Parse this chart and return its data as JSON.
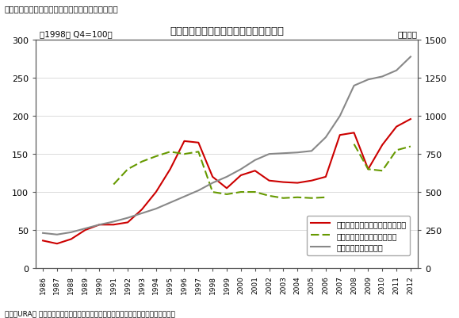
{
  "title": "民間住宅価格指数と外国人居住者の推移",
  "fig_label": "図表１　民間住宅価格指数と外国人居住者数の推移",
  "left_label": "（1998年 Q4=100）",
  "right_label": "（千人）",
  "source": "出所）URA， シンガポール統計局のデータをもとに三井住友トラスト基礎研究所作成",
  "years": [
    1986,
    1987,
    1988,
    1989,
    1990,
    1991,
    1992,
    1993,
    1994,
    1995,
    1996,
    1997,
    1998,
    1999,
    2000,
    2001,
    2002,
    2003,
    2004,
    2005,
    2006,
    2007,
    2008,
    2009,
    2010,
    2011,
    2012
  ],
  "mansion_index": [
    36,
    32,
    38,
    50,
    57,
    57,
    60,
    77,
    100,
    130,
    167,
    165,
    120,
    105,
    122,
    128,
    115,
    113,
    112,
    115,
    120,
    175,
    178,
    130,
    162,
    186,
    196
  ],
  "rental_index": [
    null,
    null,
    null,
    null,
    null,
    110,
    130,
    140,
    147,
    153,
    150,
    153,
    100,
    97,
    100,
    100,
    95,
    92,
    93,
    92,
    93,
    null,
    163,
    130,
    128,
    155,
    160
  ],
  "foreign_residents": [
    230,
    220,
    235,
    260,
    285,
    305,
    330,
    360,
    390,
    430,
    470,
    510,
    560,
    600,
    650,
    710,
    750,
    755,
    760,
    770,
    860,
    1000,
    1200,
    1240,
    1260,
    1300,
    1390
  ],
  "mansion_color": "#cc0000",
  "rental_color": "#669900",
  "foreign_color": "#888888",
  "left_ylim": [
    0,
    300
  ],
  "left_yticks": [
    0,
    50,
    100,
    150,
    200,
    250,
    300
  ],
  "right_ylim": [
    0,
    1500
  ],
  "right_yticks": [
    0,
    250,
    500,
    750,
    1000,
    1250,
    1500
  ],
  "legend_mansion": "民間マンション価格指数（左軸）",
  "legend_rental": "民間住宅の賃料指数（左軸）",
  "legend_foreign": "外国人居住者（右軸）",
  "background": "#ffffff",
  "grid_color": "#cccccc"
}
